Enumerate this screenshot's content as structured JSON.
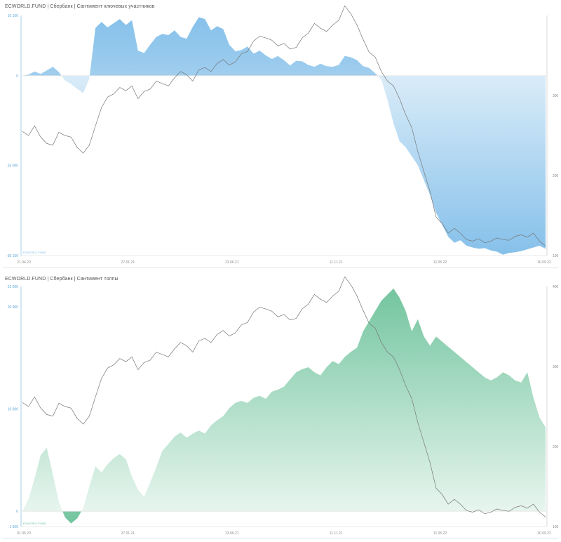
{
  "chart_data": [
    {
      "type": "area",
      "title": "ECWORLD.FUND | Сбербанк | Сантимент ключевых участников",
      "color": "#7fbde9",
      "line_color": "#777777",
      "x_ticks": [
        "21.04.20",
        "27.01.21",
        "23.06.21",
        "11.11.21",
        "11.05.22",
        "30.09.22"
      ],
      "left_ticks": [
        {
          "label": "10 100",
          "value": 10100
        },
        {
          "label": "0",
          "value": 0
        },
        {
          "label": "-15 000",
          "value": -15000
        },
        {
          "label": "-30 150",
          "value": -30150
        }
      ],
      "right_ticks": [
        {
          "label": "300",
          "value": 300
        },
        {
          "label": "200",
          "value": 200
        },
        {
          "label": "100",
          "value": 100
        }
      ],
      "ylim_left": [
        -30150,
        10100
      ],
      "ylim_right": [
        100,
        400
      ],
      "watermark": "ECWORLD.FUND",
      "series": [
        {
          "axis": "left",
          "values": [
            0,
            200,
            700,
            300,
            900,
            1500,
            600,
            -800,
            -1400,
            -2200,
            -2900,
            -500,
            8000,
            9000,
            8100,
            8800,
            9500,
            8500,
            9300,
            4200,
            3800,
            5200,
            6500,
            7000,
            6800,
            7600,
            6500,
            6200,
            8200,
            9800,
            9500,
            7600,
            8300,
            7800,
            5200,
            4100,
            4300,
            4900,
            3700,
            4200,
            3400,
            2800,
            3300,
            2600,
            1700,
            2500,
            2400,
            1800,
            1500,
            2000,
            1600,
            1500,
            1800,
            3300,
            3100,
            2600,
            1600,
            1300,
            400,
            -600,
            -4000,
            -8000,
            -11000,
            -12000,
            -13500,
            -15000,
            -17500,
            -20000,
            -23000,
            -25000,
            -27000,
            -28000,
            -27600,
            -28500,
            -28800,
            -29000,
            -28900,
            -29300,
            -29500,
            -30000,
            -29700,
            -29600,
            -29400,
            -29100,
            -28800,
            -28500,
            -29000
          ]
        },
        {
          "axis": "right",
          "values": [
            255,
            250,
            262,
            248,
            240,
            238,
            254,
            250,
            248,
            235,
            228,
            238,
            262,
            285,
            298,
            302,
            310,
            306,
            312,
            296,
            305,
            308,
            318,
            315,
            312,
            322,
            330,
            326,
            318,
            332,
            335,
            330,
            340,
            345,
            338,
            342,
            352,
            355,
            368,
            374,
            372,
            369,
            362,
            365,
            358,
            360,
            372,
            378,
            390,
            384,
            380,
            388,
            394,
            412,
            402,
            388,
            370,
            354,
            348,
            330,
            318,
            312,
            296,
            276,
            260,
            230,
            205,
            180,
            148,
            140,
            128,
            134,
            128,
            120,
            118,
            121,
            116,
            118,
            122,
            120,
            119,
            124,
            126,
            123,
            128,
            118,
            112
          ]
        }
      ]
    },
    {
      "type": "area",
      "title": "ECWORLD.FUND | Сбербанк | Сантимент толпы",
      "color": "#6cc29a",
      "line_color": "#777777",
      "x_ticks": [
        "01.05.20",
        "27.01.21",
        "23.06.21",
        "11.11.21",
        "11.05.22",
        "30.09.22"
      ],
      "left_ticks": [
        {
          "label": "22 000",
          "value": 22000
        },
        {
          "label": "20 000",
          "value": 20000
        },
        {
          "label": "10 000",
          "value": 10000
        },
        {
          "label": "0",
          "value": 0
        },
        {
          "label": "-1 500",
          "value": -1500
        }
      ],
      "right_ticks": [
        {
          "label": "400",
          "value": 400
        },
        {
          "label": "300",
          "value": 300
        },
        {
          "label": "200",
          "value": 200
        },
        {
          "label": "100",
          "value": 100
        }
      ],
      "ylim_left": [
        -1500,
        22000
      ],
      "ylim_right": [
        100,
        400
      ],
      "watermark": "ECWORLD.FUND",
      "series": [
        {
          "axis": "left",
          "values": [
            0,
            1200,
            3200,
            5500,
            6200,
            3600,
            900,
            -600,
            -1200,
            -700,
            300,
            2400,
            4400,
            3800,
            4600,
            5200,
            5600,
            5100,
            3400,
            2100,
            1400,
            2800,
            4300,
            5900,
            6600,
            7300,
            7700,
            7200,
            7600,
            7900,
            7600,
            8400,
            8900,
            9300,
            10100,
            10600,
            10800,
            10600,
            11100,
            11300,
            11000,
            11700,
            11900,
            12200,
            12900,
            13600,
            13900,
            14100,
            13600,
            13300,
            14100,
            14700,
            14400,
            15100,
            15600,
            16000,
            17600,
            18600,
            19600,
            20600,
            21200,
            21800,
            20900,
            19600,
            17600,
            18800,
            17100,
            16200,
            17100,
            16600,
            16100,
            15600,
            15100,
            14600,
            14100,
            13600,
            13100,
            12800,
            13100,
            13600,
            13300,
            12800,
            12600,
            13600,
            11100,
            9200,
            8200
          ]
        },
        {
          "axis": "right",
          "values": [
            255,
            250,
            262,
            248,
            240,
            238,
            254,
            250,
            248,
            235,
            228,
            238,
            262,
            285,
            298,
            302,
            310,
            306,
            312,
            296,
            305,
            308,
            318,
            315,
            312,
            322,
            330,
            326,
            318,
            332,
            335,
            330,
            340,
            345,
            338,
            342,
            352,
            355,
            368,
            374,
            372,
            369,
            362,
            365,
            358,
            360,
            372,
            378,
            390,
            384,
            380,
            388,
            394,
            412,
            402,
            388,
            370,
            354,
            348,
            330,
            318,
            312,
            296,
            276,
            260,
            230,
            205,
            180,
            148,
            140,
            128,
            134,
            128,
            120,
            118,
            121,
            116,
            118,
            122,
            120,
            119,
            124,
            126,
            123,
            128,
            118,
            112
          ]
        }
      ]
    }
  ]
}
